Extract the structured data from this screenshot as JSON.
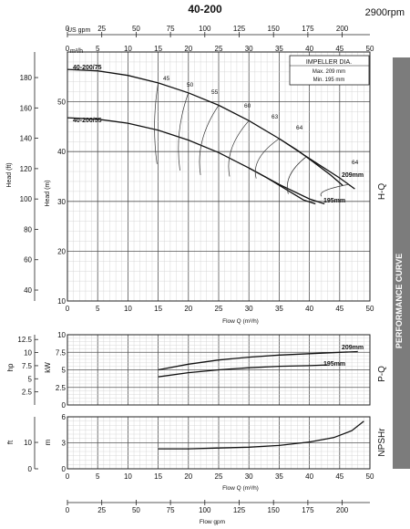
{
  "title": "40-200",
  "speed": "2900rpm",
  "side_band": "PERFORMANCE CURVE",
  "units": {
    "us_gpm": "US gpm",
    "m3h": "m³/h",
    "flow_q": "Flow Q (m³/h)",
    "flow_gpm": "Flow gpm",
    "head_ft": "Head (ft)",
    "head_m": "Head (m)",
    "hp": "hp",
    "kw": "kW",
    "ft": "ft",
    "m": "m"
  },
  "impeller_box": {
    "title": "IMPELLER DIA.",
    "max": "Max.  209  mm",
    "min": "Min.   195  mm"
  },
  "chart_data": [
    {
      "type": "line",
      "panel": "H-Q",
      "panel_label": "H-Q",
      "xlabel": "Flow Q (m³/h)",
      "ylabel": "Head (m)",
      "xlim": [
        0,
        50
      ],
      "ylim": [
        10,
        60
      ],
      "x_ticks": [
        0,
        5,
        10,
        15,
        20,
        25,
        30,
        35,
        40,
        45,
        50
      ],
      "y_ticks": [
        10,
        20,
        30,
        40,
        50
      ],
      "y2label": "Head (ft)",
      "y2_ticks": [
        40,
        60,
        80,
        100,
        120,
        140,
        160,
        180
      ],
      "top_axis_label": "US gpm",
      "top_axis_ticks": [
        0,
        25,
        50,
        75,
        100,
        125,
        150,
        175,
        200
      ],
      "grid": true,
      "series": [
        {
          "name": "40-200/75",
          "label_text": "40-200/75",
          "x": [
            0,
            5,
            10,
            15,
            20,
            25,
            30,
            35,
            40,
            45,
            47.5
          ],
          "y": [
            56.5,
            56.2,
            55.3,
            53.8,
            51.8,
            49.3,
            46.2,
            42.6,
            38.6,
            34.7,
            32.5
          ]
        },
        {
          "name": "209mm",
          "label_text": "209mm",
          "x": [
            35,
            38,
            41,
            43.5,
            45.5
          ],
          "y": [
            42.6,
            40.3,
            37.6,
            35.3,
            33.2
          ]
        },
        {
          "name": "40-200/55",
          "label_text": "40-200/55",
          "x": [
            0,
            5,
            10,
            15,
            20,
            25,
            30,
            35,
            40,
            42.5
          ],
          "y": [
            46.8,
            46.5,
            45.7,
            44.3,
            42.3,
            39.8,
            36.7,
            33.4,
            30.5,
            29.5
          ]
        },
        {
          "name": "195mm",
          "label_text": "195mm",
          "x": [
            30,
            33,
            36,
            39,
            41
          ],
          "y": [
            36.7,
            34.7,
            32.5,
            30.3,
            29.5
          ]
        }
      ],
      "efficiency_labels": [
        "45",
        "50",
        "55",
        "60",
        "63",
        "64",
        "64"
      ]
    },
    {
      "type": "line",
      "panel": "P-Q",
      "panel_label": "P-Q",
      "xlim": [
        0,
        50
      ],
      "ylim": [
        0,
        10
      ],
      "ylabel": "kW",
      "y_ticks": [
        0,
        2.5,
        5,
        7.5,
        10
      ],
      "y2label": "hp",
      "y2_ticks": [
        2.5,
        5,
        7.5,
        10,
        12.5
      ],
      "grid": true,
      "series": [
        {
          "name": "209mm",
          "label_text": "209mm",
          "x": [
            15,
            20,
            25,
            30,
            35,
            40,
            45,
            48
          ],
          "y": [
            5.0,
            5.8,
            6.4,
            6.8,
            7.1,
            7.3,
            7.5,
            7.6
          ]
        },
        {
          "name": "195mm",
          "label_text": "195mm",
          "x": [
            15,
            20,
            25,
            30,
            35,
            40,
            43
          ],
          "y": [
            4.0,
            4.6,
            5.0,
            5.3,
            5.5,
            5.6,
            5.7
          ]
        }
      ]
    },
    {
      "type": "line",
      "panel": "NPSHr",
      "panel_label": "NPSHr",
      "xlim": [
        0,
        50
      ],
      "ylim": [
        0,
        6
      ],
      "ylabel": "m",
      "y_ticks": [
        0,
        3,
        6
      ],
      "y2label": "ft",
      "y2_ticks": [
        0,
        10,
        20
      ],
      "grid": true,
      "series": [
        {
          "name": "NPSHr",
          "x": [
            15,
            20,
            25,
            30,
            35,
            40,
            44,
            47,
            49
          ],
          "y": [
            2.3,
            2.3,
            2.4,
            2.5,
            2.7,
            3.1,
            3.6,
            4.4,
            5.5
          ]
        }
      ]
    }
  ],
  "bottom_axis": {
    "label": "Flow gpm",
    "ticks": [
      0,
      25,
      50,
      75,
      100,
      125,
      150,
      175,
      200
    ]
  }
}
